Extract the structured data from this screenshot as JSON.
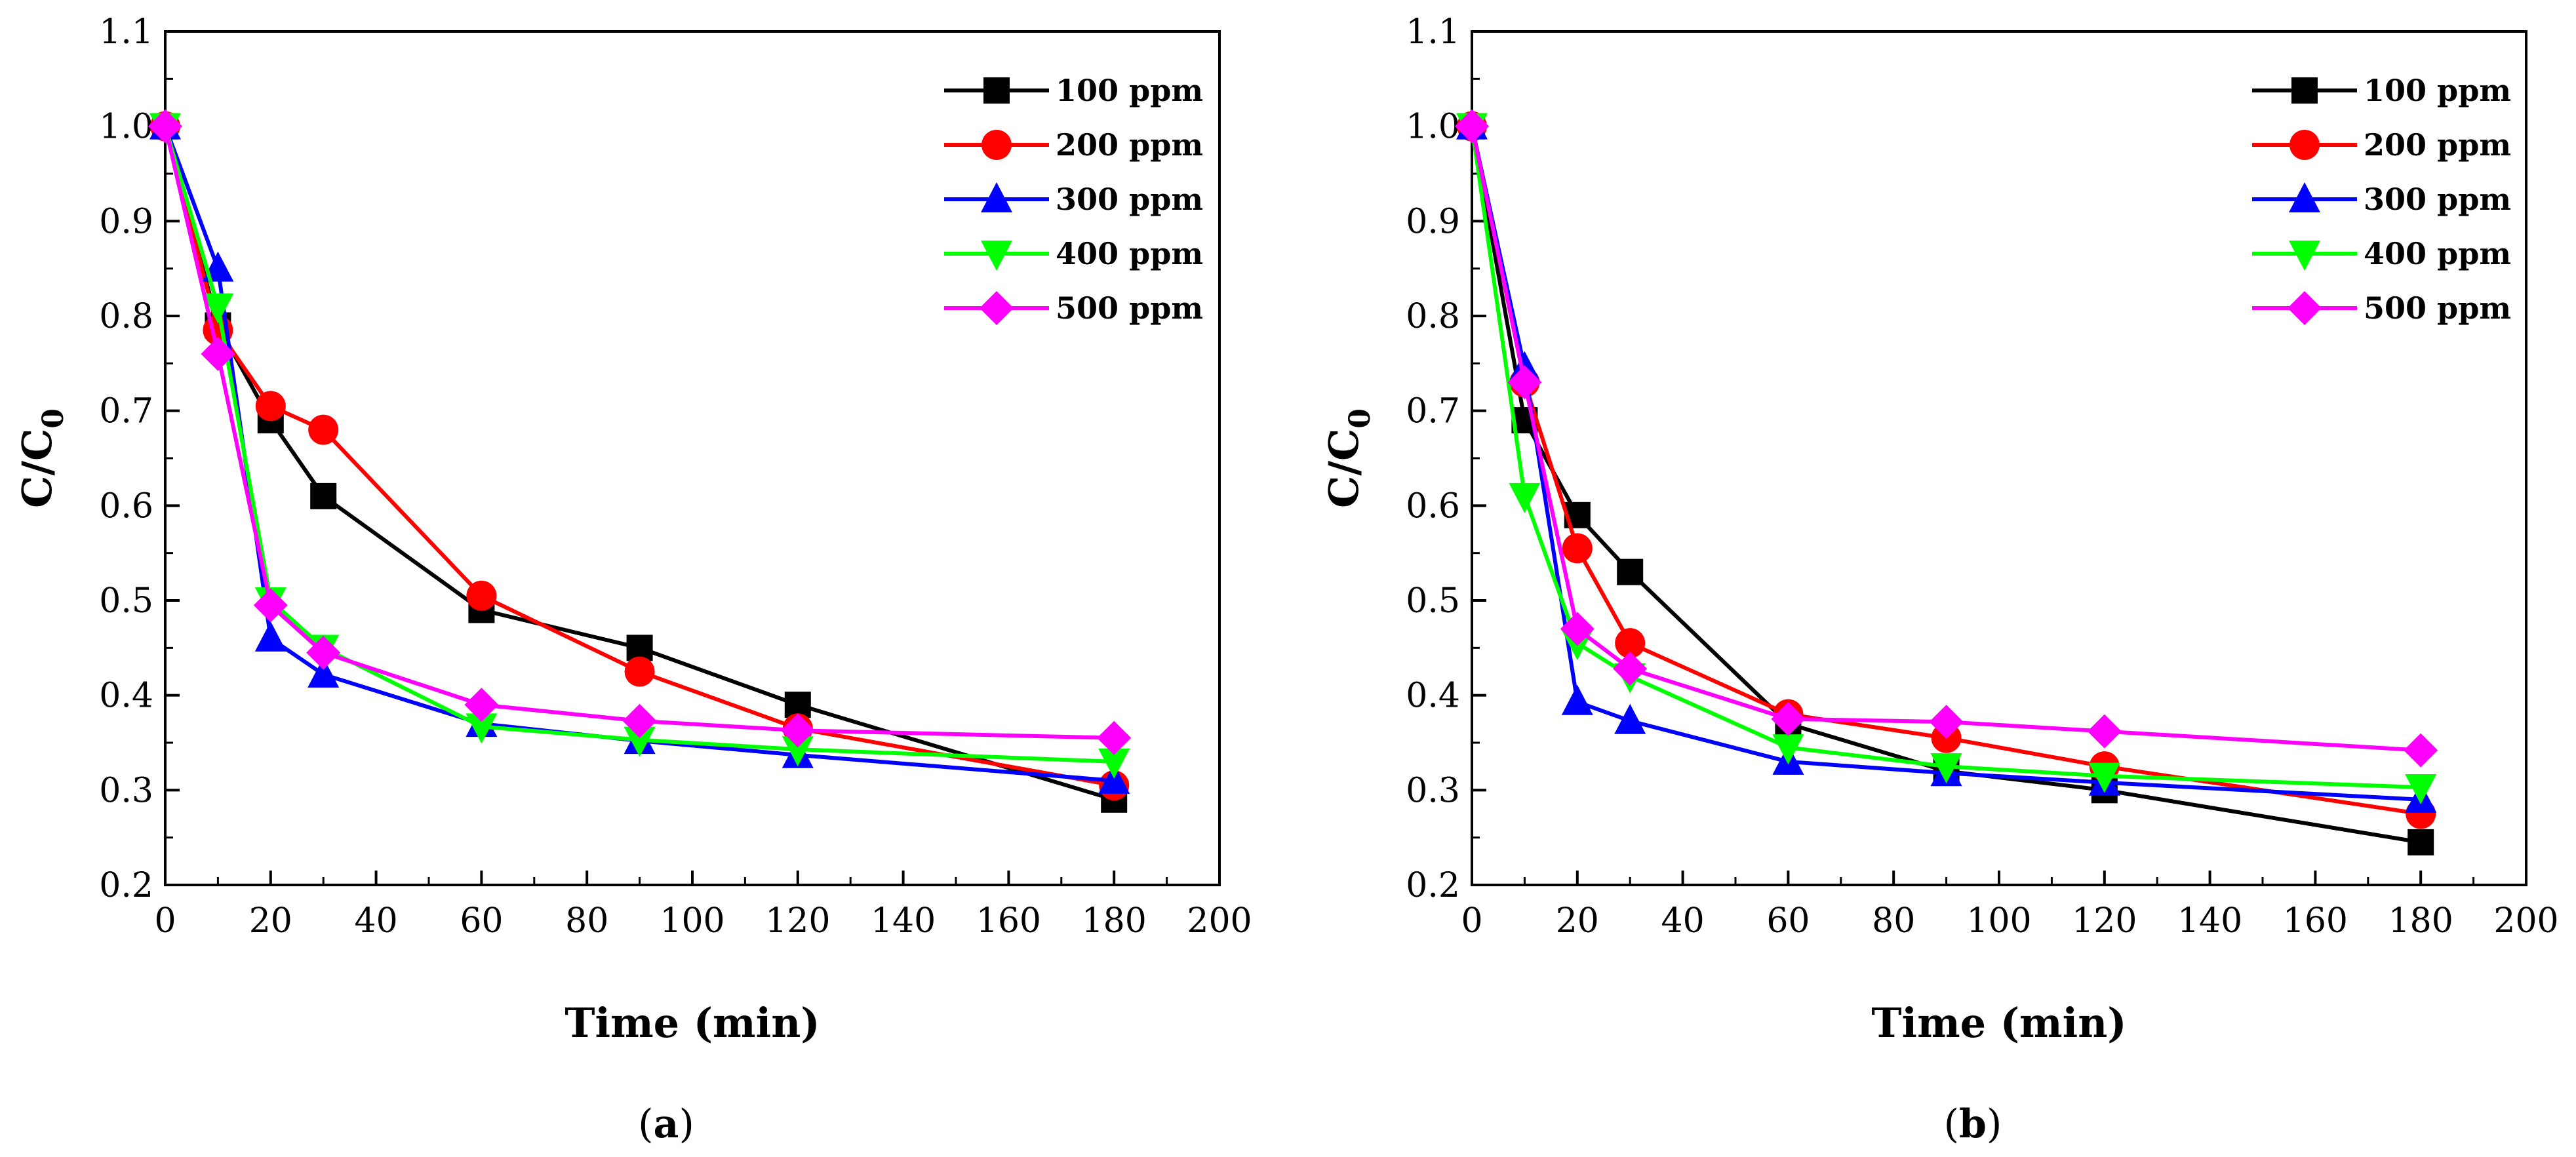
{
  "figure": {
    "colors": {
      "100 ppm": "#000000",
      "200 ppm": "#ff0000",
      "300 ppm": "#0000ff",
      "400 ppm": "#00ff00",
      "500 ppm": "#ff00ff"
    },
    "markers": {
      "100 ppm": "square",
      "200 ppm": "circle",
      "300 ppm": "triangle-up",
      "400 ppm": "triangle-down",
      "500 ppm": "diamond"
    }
  },
  "chart_data": [
    {
      "type": "line",
      "panel_label": "a",
      "xlabel": "Time (min)",
      "ylabel_main": "C/C",
      "ylabel_sub": "0",
      "xlim": [
        0,
        200
      ],
      "ylim": [
        0.2,
        1.1
      ],
      "xticks": [
        "0",
        "20",
        "40",
        "60",
        "80",
        "100",
        "120",
        "140",
        "160",
        "180",
        "200"
      ],
      "yticks": [
        "0.2",
        "0.3",
        "0.4",
        "0.5",
        "0.6",
        "0.7",
        "0.8",
        "0.9",
        "1.0",
        "1.1"
      ],
      "x": [
        0,
        10,
        20,
        30,
        60,
        90,
        120,
        180
      ],
      "legend_position": "top-right",
      "series": [
        {
          "name": "100 ppm",
          "values": [
            1.0,
            0.79,
            0.69,
            0.61,
            0.49,
            0.45,
            0.39,
            0.29
          ]
        },
        {
          "name": "200 ppm",
          "values": [
            1.0,
            0.785,
            0.705,
            0.68,
            0.505,
            0.425,
            0.365,
            0.305
          ]
        },
        {
          "name": "300 ppm",
          "values": [
            1.0,
            0.85,
            0.46,
            0.422,
            0.37,
            0.352,
            0.337,
            0.31
          ]
        },
        {
          "name": "400 ppm",
          "values": [
            1.0,
            0.81,
            0.5,
            0.45,
            0.367,
            0.353,
            0.343,
            0.33
          ]
        },
        {
          "name": "500 ppm",
          "values": [
            1.0,
            0.76,
            0.495,
            0.445,
            0.39,
            0.373,
            0.363,
            0.355
          ]
        }
      ]
    },
    {
      "type": "line",
      "panel_label": "b",
      "xlabel": "Time (min)",
      "ylabel_main": "C/C",
      "ylabel_sub": "0",
      "xlim": [
        0,
        200
      ],
      "ylim": [
        0.2,
        1.1
      ],
      "xticks": [
        "0",
        "20",
        "40",
        "60",
        "80",
        "100",
        "120",
        "140",
        "160",
        "180",
        "200"
      ],
      "yticks": [
        "0.2",
        "0.3",
        "0.4",
        "0.5",
        "0.6",
        "0.7",
        "0.8",
        "0.9",
        "1.0",
        "1.1"
      ],
      "x": [
        0,
        10,
        20,
        30,
        60,
        90,
        120,
        180
      ],
      "legend_position": "top-right",
      "series": [
        {
          "name": "100 ppm",
          "values": [
            1.0,
            0.69,
            0.59,
            0.53,
            0.37,
            0.32,
            0.3,
            0.245
          ]
        },
        {
          "name": "200 ppm",
          "values": [
            1.0,
            0.73,
            0.555,
            0.455,
            0.38,
            0.355,
            0.325,
            0.275
          ]
        },
        {
          "name": "300 ppm",
          "values": [
            1.0,
            0.745,
            0.393,
            0.373,
            0.33,
            0.318,
            0.308,
            0.29
          ]
        },
        {
          "name": "400 ppm",
          "values": [
            1.0,
            0.61,
            0.455,
            0.42,
            0.345,
            0.325,
            0.315,
            0.303
          ]
        },
        {
          "name": "500 ppm",
          "values": [
            1.0,
            0.73,
            0.47,
            0.428,
            0.375,
            0.372,
            0.362,
            0.342
          ]
        }
      ]
    }
  ]
}
